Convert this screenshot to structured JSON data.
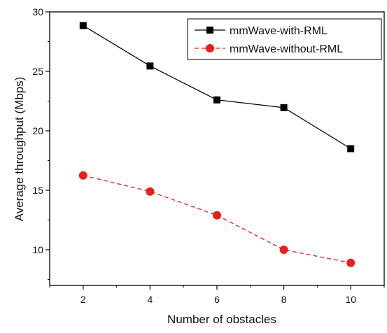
{
  "chart_data": {
    "type": "line",
    "title": "",
    "xlabel": "Number of obstacles",
    "ylabel": "Average throughput (Mbps)",
    "xlim": [
      1,
      11
    ],
    "ylim": [
      7,
      30
    ],
    "x_ticks": [
      2,
      4,
      6,
      8,
      10
    ],
    "y_ticks": [
      10,
      15,
      20,
      25,
      30
    ],
    "grid": false,
    "legend_position": "top-right",
    "x": [
      2,
      4,
      6,
      8,
      10
    ],
    "series": [
      {
        "name": "mmWave-with-RML",
        "values": [
          28.85,
          25.45,
          22.6,
          21.95,
          18.5
        ],
        "color": "#000000",
        "marker": "square",
        "line_style": "solid"
      },
      {
        "name": "mmWave-without-RML",
        "values": [
          16.25,
          14.9,
          12.9,
          10.0,
          8.9
        ],
        "color": "#e8201b",
        "marker": "circle",
        "line_style": "dashed"
      }
    ]
  }
}
